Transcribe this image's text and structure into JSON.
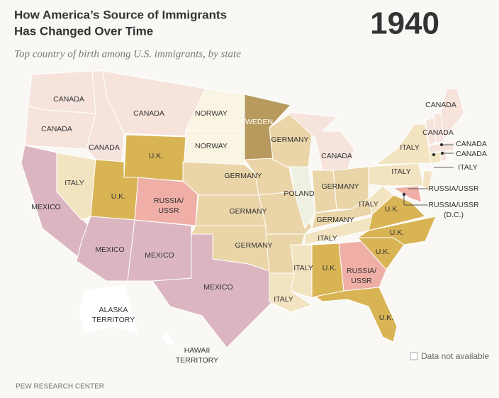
{
  "header": {
    "title": [
      "How America’s Source of Immigrants",
      "Has Changed Over Time"
    ],
    "year": "1940",
    "subtitle": "Top country of birth among U.S. immigrants, by state"
  },
  "regions": [
    {
      "fill": "#f5e3dc"
    },
    {
      "fill": "#f5e3dc"
    },
    {
      "fill": "#f5e3dc"
    },
    {
      "fill": "#f5e3dc"
    },
    {
      "fill": "#faf4e3"
    },
    {
      "fill": "#faf4e3"
    },
    {
      "fill": "#b89a5e"
    },
    {
      "fill": "#d9b455"
    },
    {
      "fill": "#dbb6c1"
    },
    {
      "fill": "#f2e4c0"
    },
    {
      "fill": "#d9b455"
    },
    {
      "fill": "#efafa6"
    },
    {
      "fill": "#ead5a8"
    },
    {
      "fill": "#ead5a8"
    },
    {
      "fill": "#ead5a8"
    },
    {
      "fill": "#dbb6c1"
    },
    {
      "fill": "#dbb6c1"
    },
    {
      "fill": "#dbb6c1"
    },
    {
      "fill": "#ead5a8"
    },
    {
      "fill": "#ead5a8"
    },
    {
      "fill": "#ead5a8"
    },
    {
      "fill": "#f2e4c0"
    },
    {
      "fill": "#ead5a8"
    },
    {
      "fill": "#f5e3dc"
    },
    {
      "fill": "#eef1e2"
    },
    {
      "fill": "#ead5a8"
    },
    {
      "fill": "#ead5a8"
    },
    {
      "fill": "#ead5a8"
    },
    {
      "fill": "#f2e4c0"
    },
    {
      "fill": "#f2e4c0"
    },
    {
      "fill": "#d9b455"
    },
    {
      "fill": "#efafa6"
    },
    {
      "fill": "#d9b455"
    },
    {
      "fill": "#d9b455"
    },
    {
      "fill": "#d9b455"
    },
    {
      "fill": "#d9b455"
    },
    {
      "fill": "#f2e4c0"
    },
    {
      "fill": "#f2e4c0"
    },
    {
      "fill": "#f2e4c0"
    },
    {
      "fill": "#efafa6"
    },
    {
      "fill": "#f2e4c0"
    },
    {
      "fill": "#f5e3dc"
    },
    {
      "fill": "#f5e3dc"
    },
    {
      "fill": "#f5e3dc"
    },
    {
      "fill": "#f5e3dc"
    },
    {
      "fill": "#f2e4c0"
    },
    {
      "fill": "#f5e3dc"
    },
    {
      "fill": "#ffffff"
    },
    {
      "fill": "#ffffff"
    }
  ],
  "labels": [
    [
      "CANADA"
    ],
    [
      "CANADA"
    ],
    [
      "CANADA"
    ],
    [
      "CANADA"
    ],
    [
      "NORWAY"
    ],
    [
      "NORWAY"
    ],
    [
      "SWEDEN"
    ],
    [
      "GERMANY"
    ],
    [
      "CANADA"
    ],
    [
      "U.K."
    ],
    [
      "ITALY"
    ],
    [
      "U.K."
    ],
    [
      "RUSSIA/",
      "USSR"
    ],
    [
      "MEXICO"
    ],
    [
      "GERMANY"
    ],
    [
      "POLAND"
    ],
    [
      "GERMANY"
    ],
    [
      "GERMANY"
    ],
    [
      "ITALY"
    ],
    [
      "U.K."
    ],
    [
      "GERMANY"
    ],
    [
      "ITALY"
    ],
    [
      "U.K."
    ],
    [
      "MEXICO"
    ],
    [
      "MEXICO"
    ],
    [
      "GERMANY"
    ],
    [
      "U.K."
    ],
    [
      "ITALY"
    ],
    [
      "U.K."
    ],
    [
      "RUSSIA/",
      "USSR"
    ],
    [
      "MEXICO"
    ],
    [
      "ITALY"
    ],
    [
      "U.K."
    ],
    [
      "ALASKA",
      "TERRITORY"
    ],
    [
      "HAWAII",
      "TERRITORY"
    ],
    [
      "CANADA"
    ],
    [
      "CANADA"
    ],
    [
      "ITALY"
    ],
    [
      "ITALY"
    ],
    [
      "CANADA"
    ],
    [
      "CANADA"
    ],
    [
      "ITALY"
    ],
    [
      "RUSSIA/USSR"
    ],
    [
      "RUSSIA/USSR",
      "(D.C.)"
    ]
  ],
  "legend": "Data not available",
  "source": "PEW RESEARCH CENTER"
}
